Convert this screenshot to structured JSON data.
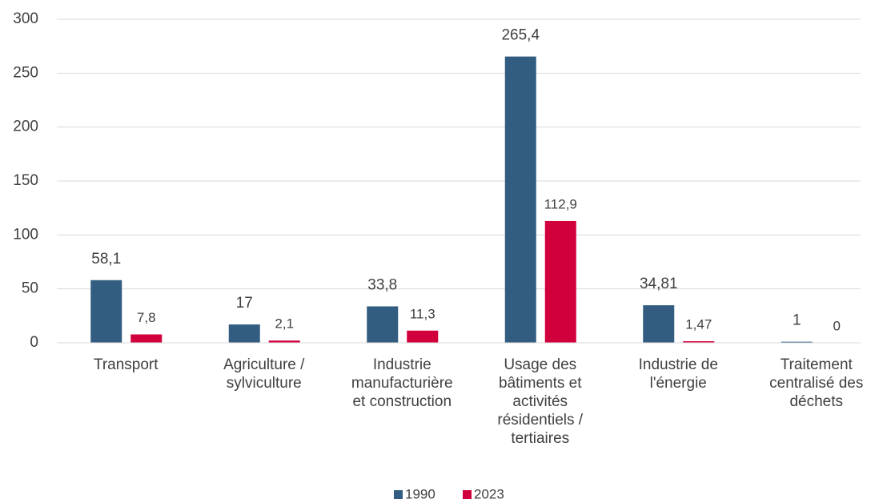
{
  "chart_data": {
    "type": "bar",
    "categories": [
      "Transport",
      "Agriculture /\nsylviculture",
      "Industrie\nmanufacturière\net construction",
      "Usage des\nbâtiments et\nactivités\nrésidentiels /\ntertiaires",
      "Industrie de\nl'énergie",
      "Traitement\ncentralisé des\ndéchets"
    ],
    "series": [
      {
        "name": "1990",
        "color": "#325d80",
        "values": [
          58.1,
          17,
          33.8,
          265.4,
          34.81,
          1
        ],
        "value_labels": [
          "58,1",
          "17",
          "33,8",
          "265,4",
          "34,81",
          "1"
        ]
      },
      {
        "name": "2023",
        "color": "#d1003c",
        "values": [
          7.8,
          2.1,
          11.3,
          112.9,
          1.47,
          0
        ],
        "value_labels": [
          "7,8",
          "2,1",
          "11,3",
          "112,9",
          "1,47",
          "0"
        ]
      }
    ],
    "ylim": [
      0,
      300
    ],
    "yticks": [
      0,
      50,
      100,
      150,
      200,
      250,
      300
    ],
    "grid": true,
    "legend": "bottom"
  }
}
